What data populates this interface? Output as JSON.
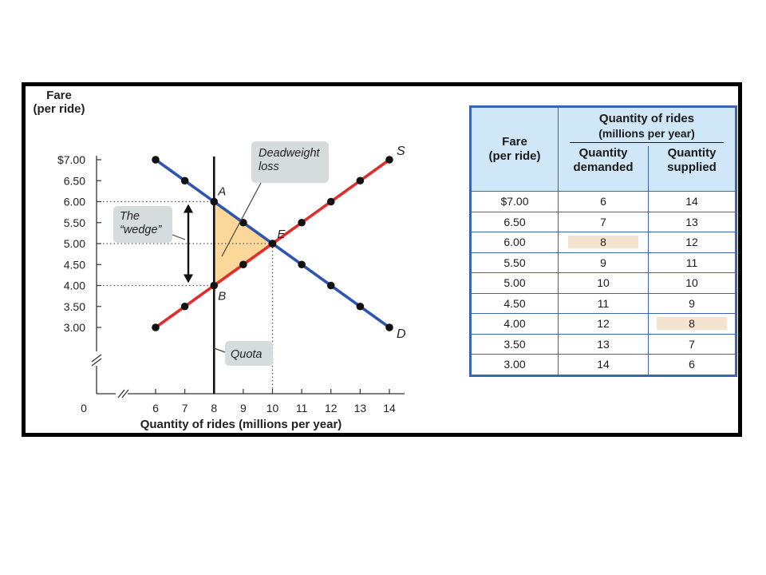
{
  "chart_data": {
    "type": "line",
    "ylabel": "Fare\n(per ride)",
    "xlabel": "Quantity of rides (millions per year)",
    "x_ticks": [
      6,
      7,
      8,
      9,
      10,
      11,
      12,
      13,
      14
    ],
    "y_ticks": [
      "$7.00",
      "6.50",
      "6.00",
      "5.50",
      "5.00",
      "4.50",
      "4.00",
      "3.50",
      "3.00"
    ],
    "origin_label": "0",
    "xlim": [
      6,
      14
    ],
    "ylim": [
      3.0,
      7.0
    ],
    "axis_breaks": true,
    "series": [
      {
        "name": "D",
        "color": "#2e55b0",
        "points": [
          [
            6,
            7.0
          ],
          [
            7,
            6.5
          ],
          [
            8,
            6.0
          ],
          [
            9,
            5.5
          ],
          [
            10,
            5.0
          ],
          [
            11,
            4.5
          ],
          [
            12,
            4.0
          ],
          [
            13,
            3.5
          ],
          [
            14,
            3.0
          ]
        ]
      },
      {
        "name": "S",
        "color": "#e02e2e",
        "points": [
          [
            6,
            3.0
          ],
          [
            7,
            3.5
          ],
          [
            8,
            4.0
          ],
          [
            9,
            4.5
          ],
          [
            10,
            5.0
          ],
          [
            11,
            5.5
          ],
          [
            12,
            6.0
          ],
          [
            13,
            6.5
          ],
          [
            14,
            7.0
          ]
        ]
      }
    ],
    "quota_x": 8,
    "quota_label": "Quota",
    "deadweight_label": "Deadweight\nloss",
    "deadweight_color": "#fbd79a",
    "wedge_label": "The\n“wedge”",
    "points_labeled": [
      {
        "label": "A",
        "x": 8,
        "y": 6.0
      },
      {
        "label": "B",
        "x": 8,
        "y": 4.0
      },
      {
        "label": "E",
        "x": 10,
        "y": 5.0
      }
    ]
  },
  "table": {
    "header_group": "Quantity of rides",
    "header_group_sub": "(millions per year)",
    "col_fare": "Fare",
    "col_fare_sub": "(per ride)",
    "col_demanded": "Quantity",
    "col_demanded_sub": "demanded",
    "col_supplied": "Quantity",
    "col_supplied_sub": "supplied",
    "header_bg": "#cfe7f7",
    "border_color": "#3d63b5",
    "highlight_color": "#f4e4cf",
    "rows": [
      {
        "fare": "$7.00",
        "demanded": "6",
        "supplied": "14"
      },
      {
        "fare": "6.50",
        "demanded": "7",
        "supplied": "13"
      },
      {
        "fare": "6.00",
        "demanded": "8",
        "supplied": "12",
        "hl_demanded": true
      },
      {
        "fare": "5.50",
        "demanded": "9",
        "supplied": "11"
      },
      {
        "fare": "5.00",
        "demanded": "10",
        "supplied": "10"
      },
      {
        "fare": "4.50",
        "demanded": "11",
        "supplied": "9"
      },
      {
        "fare": "4.00",
        "demanded": "12",
        "supplied": "8",
        "hl_supplied": true
      },
      {
        "fare": "3.50",
        "demanded": "13",
        "supplied": "7"
      },
      {
        "fare": "3.00",
        "demanded": "14",
        "supplied": "6"
      }
    ]
  }
}
